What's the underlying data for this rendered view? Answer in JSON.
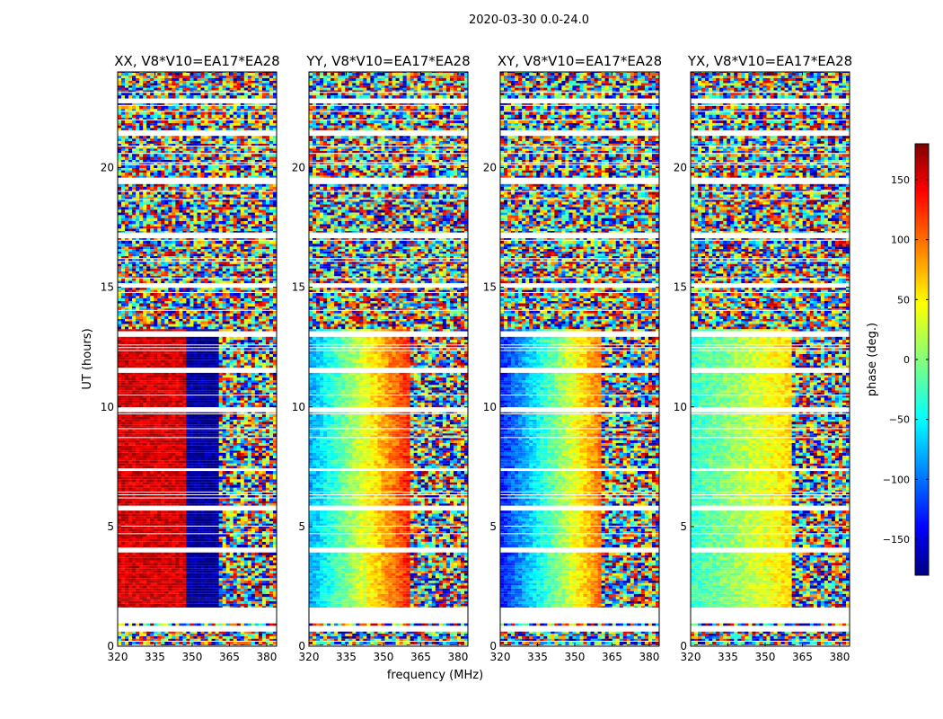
{
  "figure": {
    "suptitle": "2020-03-30 0.0-24.0"
  },
  "chart_data": [
    {
      "type": "heatmap",
      "title": "XX, V8*V10=EA17*EA28",
      "polarization": "XX",
      "xlabel": "",
      "ylabel": "UT (hours)",
      "xlim": [
        320,
        384
      ],
      "ylim": [
        0,
        24
      ],
      "xticks": [
        320,
        335,
        350,
        365,
        380
      ],
      "xtick_labels": [
        "320",
        "335",
        "350",
        "365",
        "380"
      ],
      "yticks": [
        0,
        5,
        10,
        15,
        20
      ],
      "ytick_labels": [
        "0",
        "5",
        "10",
        "15",
        "20"
      ],
      "z_description": "phase (deg.)",
      "frequency_bands": [
        {
          "from": 320,
          "to": 348,
          "typical_phase": 150
        },
        {
          "from": 348,
          "to": 361,
          "typical_phase": -170
        },
        {
          "from": 361,
          "to": 384,
          "typical_phase": "noise"
        }
      ]
    },
    {
      "type": "heatmap",
      "title": "YY, V8*V10=EA17*EA28",
      "polarization": "YY",
      "xlabel": "frequency (MHz)",
      "ylabel": "",
      "xlim": [
        320,
        384
      ],
      "ylim": [
        0,
        24
      ],
      "xticks": [
        320,
        335,
        350,
        365,
        380
      ],
      "xtick_labels": [
        "320",
        "335",
        "350",
        "365",
        "380"
      ],
      "yticks": [
        0,
        5,
        10,
        15,
        20
      ],
      "ytick_labels": [
        "0",
        "5",
        "10",
        "15",
        "20"
      ],
      "z_description": "phase (deg.)",
      "frequency_bands": [
        {
          "from": 320,
          "to": 361,
          "typical_phase": "gradient -80 to 130"
        },
        {
          "from": 361,
          "to": 384,
          "typical_phase": "noise"
        }
      ]
    },
    {
      "type": "heatmap",
      "title": "XY, V8*V10=EA17*EA28",
      "polarization": "XY",
      "xlabel": "",
      "ylabel": "",
      "xlim": [
        320,
        384
      ],
      "ylim": [
        0,
        24
      ],
      "xticks": [
        320,
        335,
        350,
        365,
        380
      ],
      "xtick_labels": [
        "320",
        "335",
        "350",
        "365",
        "380"
      ],
      "yticks": [
        0,
        5,
        10,
        15,
        20
      ],
      "ytick_labels": [
        "0",
        "5",
        "10",
        "15",
        "20"
      ],
      "z_description": "phase (deg.)",
      "frequency_bands": [
        {
          "from": 320,
          "to": 361,
          "typical_phase": "gradient -130 to 100"
        },
        {
          "from": 361,
          "to": 384,
          "typical_phase": "noise"
        }
      ]
    },
    {
      "type": "heatmap",
      "title": "YX, V8*V10=EA17*EA28",
      "polarization": "YX",
      "xlabel": "",
      "ylabel": "",
      "xlim": [
        320,
        384
      ],
      "ylim": [
        0,
        24
      ],
      "xticks": [
        320,
        335,
        350,
        365,
        380
      ],
      "xtick_labels": [
        "320",
        "335",
        "350",
        "365",
        "380"
      ],
      "yticks": [
        0,
        5,
        10,
        15,
        20
      ],
      "ytick_labels": [
        "0",
        "5",
        "10",
        "15",
        "20"
      ],
      "z_description": "phase (deg.)",
      "frequency_bands": [
        {
          "from": 320,
          "to": 361,
          "typical_phase": "gradient -30 to 60"
        },
        {
          "from": 361,
          "to": 384,
          "typical_phase": "noise"
        }
      ]
    }
  ],
  "colorbar": {
    "label": "phase (deg.)",
    "range": [
      -180,
      180
    ],
    "ticks": [
      150,
      100,
      50,
      0,
      -50,
      -100,
      -150
    ],
    "tick_labels": [
      "150",
      "100",
      "50",
      "0",
      "−50",
      "−100",
      "−150"
    ],
    "colormap": "jet",
    "jet_stops": [
      "#000080",
      "#0000ff",
      "#00ffff",
      "#ffff00",
      "#ff0000",
      "#800000"
    ]
  }
}
